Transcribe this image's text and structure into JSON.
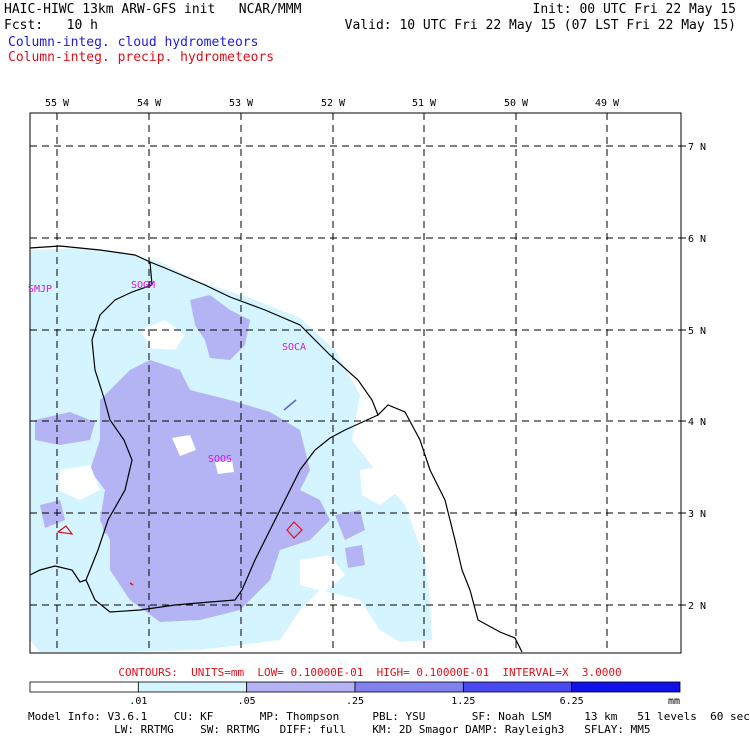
{
  "header": {
    "title_left": "HAIC-HIWC 13km ARW-GFS init   NCAR/MMM",
    "init": "Init: 00 UTC Fri 22 May 15",
    "fcst": "Fcst:   10 h",
    "valid": "Valid: 10 UTC Fri 22 May 15 (07 LST Fri 22 May 15)",
    "field1": "Column-integ. cloud hydrometeors",
    "field2": "Column-integ. precip. hydrometeors",
    "field1_color": "#1c1cd6",
    "field2_color": "#e0101a"
  },
  "map": {
    "lon_labels": [
      "55 W",
      "54 W",
      "53 W",
      "52 W",
      "51 W",
      "50 W",
      "49 W"
    ],
    "lat_labels": [
      "7 N",
      "6 N",
      "5 N",
      "4 N",
      "3 N",
      "2 N"
    ],
    "stations": [
      "SMJP",
      "SOGM",
      "SOCA",
      "SOOS"
    ],
    "station_color": "#e010e0"
  },
  "contours_line": "CONTOURS:  UNITS=mm  LOW= 0.10000E-01  HIGH= 0.10000E-01  INTERVAL=X  3.0000",
  "colorbar": {
    "ticks": [
      ".01",
      ".05",
      ".25",
      "1.25",
      "6.25"
    ],
    "unit": "mm",
    "colors": [
      "#ffffff",
      "#d4f4ff",
      "#b4b4f4",
      "#8080ee",
      "#4848f0",
      "#1010e8"
    ]
  },
  "model_info": {
    "line1": "Model Info: V3.6.1    CU: KF       MP: Thompson     PBL: YSU       SF: Noah LSM     13 km   51 levels  60 sec",
    "line2": "             LW: RRTMG    SW: RRTMG   DIFF: full    KM: 2D Smagor DAMP: Rayleigh3   SFLAY: MM5"
  }
}
